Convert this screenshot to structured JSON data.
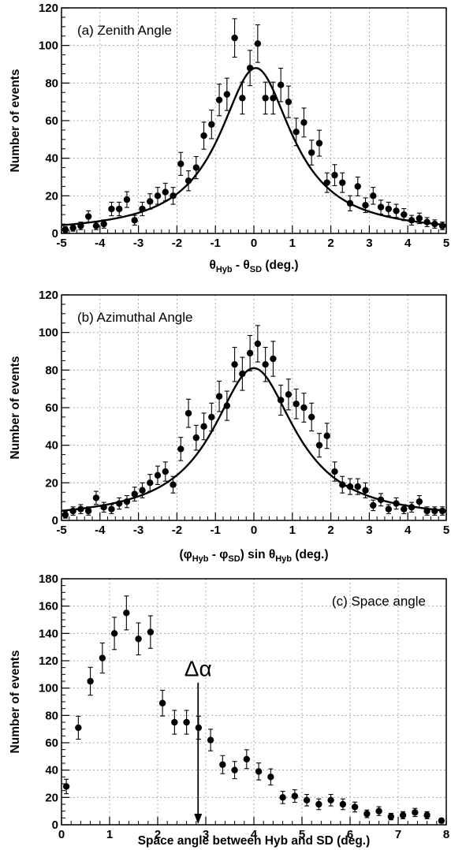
{
  "chart_data": [
    {
      "id": "a",
      "type": "scatter",
      "label": "(a) Zenith Angle",
      "xlabel": {
        "main": "θ",
        "sub1": "Hyb",
        "mid": " - θ",
        "sub2": "SD",
        "tail": " (deg.)"
      },
      "ylabel": "Number of events",
      "xlim": [
        -5,
        5
      ],
      "ylim": [
        0,
        120
      ],
      "xticks": [
        -5,
        -4,
        -3,
        -2,
        -1,
        0,
        1,
        2,
        3,
        4,
        5
      ],
      "yticks": [
        0,
        20,
        40,
        60,
        80,
        100,
        120
      ],
      "grid": true,
      "fit": {
        "amplitude": 88,
        "mean": 0.05,
        "gamma": 1.15
      },
      "points": [
        {
          "x": -4.9,
          "y": 2,
          "err": 1.5
        },
        {
          "x": -4.7,
          "y": 3,
          "err": 1.8
        },
        {
          "x": -4.5,
          "y": 4,
          "err": 2
        },
        {
          "x": -4.3,
          "y": 9,
          "err": 3
        },
        {
          "x": -4.1,
          "y": 4,
          "err": 2
        },
        {
          "x": -3.9,
          "y": 5,
          "err": 2.2
        },
        {
          "x": -3.7,
          "y": 13,
          "err": 3.6
        },
        {
          "x": -3.5,
          "y": 13,
          "err": 3.6
        },
        {
          "x": -3.3,
          "y": 18,
          "err": 4.2
        },
        {
          "x": -3.1,
          "y": 7,
          "err": 2.6
        },
        {
          "x": -2.9,
          "y": 13,
          "err": 3.6
        },
        {
          "x": -2.7,
          "y": 17,
          "err": 4.1
        },
        {
          "x": -2.5,
          "y": 20,
          "err": 4.5
        },
        {
          "x": -2.3,
          "y": 22,
          "err": 4.7
        },
        {
          "x": -2.1,
          "y": 20,
          "err": 4.5
        },
        {
          "x": -1.9,
          "y": 37,
          "err": 6.1
        },
        {
          "x": -1.7,
          "y": 28,
          "err": 5.3
        },
        {
          "x": -1.5,
          "y": 35,
          "err": 5.9
        },
        {
          "x": -1.3,
          "y": 52,
          "err": 7.2
        },
        {
          "x": -1.1,
          "y": 58,
          "err": 7.6
        },
        {
          "x": -0.9,
          "y": 71,
          "err": 8.4
        },
        {
          "x": -0.7,
          "y": 74,
          "err": 8.6
        },
        {
          "x": -0.5,
          "y": 104,
          "err": 10.2
        },
        {
          "x": -0.3,
          "y": 72,
          "err": 8.5
        },
        {
          "x": -0.1,
          "y": 88,
          "err": 9.4
        },
        {
          "x": 0.1,
          "y": 101,
          "err": 10
        },
        {
          "x": 0.3,
          "y": 72,
          "err": 8.5
        },
        {
          "x": 0.5,
          "y": 72,
          "err": 8.5
        },
        {
          "x": 0.7,
          "y": 79,
          "err": 8.9
        },
        {
          "x": 0.9,
          "y": 70,
          "err": 8.4
        },
        {
          "x": 1.1,
          "y": 54,
          "err": 7.3
        },
        {
          "x": 1.3,
          "y": 59,
          "err": 7.7
        },
        {
          "x": 1.5,
          "y": 43,
          "err": 6.6
        },
        {
          "x": 1.7,
          "y": 48,
          "err": 6.9
        },
        {
          "x": 1.9,
          "y": 27,
          "err": 5.2
        },
        {
          "x": 2.1,
          "y": 31,
          "err": 5.6
        },
        {
          "x": 2.3,
          "y": 27,
          "err": 5.2
        },
        {
          "x": 2.5,
          "y": 16,
          "err": 4
        },
        {
          "x": 2.7,
          "y": 25,
          "err": 5
        },
        {
          "x": 2.9,
          "y": 15,
          "err": 3.9
        },
        {
          "x": 3.1,
          "y": 20,
          "err": 4.5
        },
        {
          "x": 3.3,
          "y": 14,
          "err": 3.7
        },
        {
          "x": 3.5,
          "y": 13,
          "err": 3.6
        },
        {
          "x": 3.7,
          "y": 12,
          "err": 3.5
        },
        {
          "x": 3.9,
          "y": 10,
          "err": 3.2
        },
        {
          "x": 4.1,
          "y": 7,
          "err": 2.6
        },
        {
          "x": 4.3,
          "y": 8,
          "err": 2.8
        },
        {
          "x": 4.5,
          "y": 6,
          "err": 2.4
        },
        {
          "x": 4.7,
          "y": 5,
          "err": 2.2
        },
        {
          "x": 4.9,
          "y": 4,
          "err": 2
        }
      ]
    },
    {
      "id": "b",
      "type": "scatter",
      "label": "(b) Azimuthal Angle",
      "xlabel": {
        "pre": "(φ",
        "sub1": "Hyb",
        "mid": " - φ",
        "sub2": "SD",
        "mid2": ") sin θ",
        "sub3": "Hyb",
        "tail": " (deg.)"
      },
      "ylabel": "Number of events",
      "xlim": [
        -5,
        5
      ],
      "ylim": [
        0,
        120
      ],
      "xticks": [
        -5,
        -4,
        -3,
        -2,
        -1,
        0,
        1,
        2,
        3,
        4,
        5
      ],
      "yticks": [
        0,
        20,
        40,
        60,
        80,
        100,
        120
      ],
      "grid": true,
      "fit": {
        "amplitude": 81,
        "mean": 0.0,
        "gamma": 1.3
      },
      "points": [
        {
          "x": -4.9,
          "y": 3,
          "err": 1.8
        },
        {
          "x": -4.7,
          "y": 5,
          "err": 2.2
        },
        {
          "x": -4.5,
          "y": 6,
          "err": 2.4
        },
        {
          "x": -4.3,
          "y": 5,
          "err": 2.2
        },
        {
          "x": -4.1,
          "y": 12,
          "err": 3.5
        },
        {
          "x": -3.9,
          "y": 7,
          "err": 2.6
        },
        {
          "x": -3.7,
          "y": 6,
          "err": 2.4
        },
        {
          "x": -3.5,
          "y": 9,
          "err": 3
        },
        {
          "x": -3.3,
          "y": 10,
          "err": 3.2
        },
        {
          "x": -3.1,
          "y": 14,
          "err": 3.7
        },
        {
          "x": -2.9,
          "y": 16,
          "err": 4
        },
        {
          "x": -2.7,
          "y": 20,
          "err": 4.5
        },
        {
          "x": -2.5,
          "y": 24,
          "err": 4.9
        },
        {
          "x": -2.3,
          "y": 26,
          "err": 5.1
        },
        {
          "x": -2.1,
          "y": 19,
          "err": 4.4
        },
        {
          "x": -1.9,
          "y": 38,
          "err": 6.2
        },
        {
          "x": -1.7,
          "y": 57,
          "err": 7.5
        },
        {
          "x": -1.5,
          "y": 44,
          "err": 6.6
        },
        {
          "x": -1.3,
          "y": 50,
          "err": 7.1
        },
        {
          "x": -1.1,
          "y": 55,
          "err": 7.4
        },
        {
          "x": -0.9,
          "y": 66,
          "err": 8.1
        },
        {
          "x": -0.7,
          "y": 61,
          "err": 7.8
        },
        {
          "x": -0.5,
          "y": 83,
          "err": 9.1
        },
        {
          "x": -0.3,
          "y": 78,
          "err": 8.8
        },
        {
          "x": -0.1,
          "y": 89,
          "err": 9.4
        },
        {
          "x": 0.1,
          "y": 94,
          "err": 9.7
        },
        {
          "x": 0.3,
          "y": 83,
          "err": 9.1
        },
        {
          "x": 0.5,
          "y": 86,
          "err": 9.3
        },
        {
          "x": 0.7,
          "y": 64,
          "err": 8
        },
        {
          "x": 0.9,
          "y": 67,
          "err": 8.2
        },
        {
          "x": 1.1,
          "y": 62,
          "err": 7.9
        },
        {
          "x": 1.3,
          "y": 60,
          "err": 7.7
        },
        {
          "x": 1.5,
          "y": 55,
          "err": 7.4
        },
        {
          "x": 1.7,
          "y": 40,
          "err": 6.3
        },
        {
          "x": 1.9,
          "y": 45,
          "err": 6.7
        },
        {
          "x": 2.1,
          "y": 26,
          "err": 5.1
        },
        {
          "x": 2.3,
          "y": 19,
          "err": 4.4
        },
        {
          "x": 2.5,
          "y": 18,
          "err": 4.2
        },
        {
          "x": 2.7,
          "y": 18,
          "err": 4.2
        },
        {
          "x": 2.9,
          "y": 16,
          "err": 4
        },
        {
          "x": 3.1,
          "y": 8,
          "err": 2.8
        },
        {
          "x": 3.3,
          "y": 11,
          "err": 3.3
        },
        {
          "x": 3.5,
          "y": 6,
          "err": 2.4
        },
        {
          "x": 3.7,
          "y": 9,
          "err": 3
        },
        {
          "x": 3.9,
          "y": 6,
          "err": 2.4
        },
        {
          "x": 4.1,
          "y": 7,
          "err": 2.6
        },
        {
          "x": 4.3,
          "y": 10,
          "err": 3.2
        },
        {
          "x": 4.5,
          "y": 5,
          "err": 2.2
        },
        {
          "x": 4.7,
          "y": 5,
          "err": 2.2
        },
        {
          "x": 4.9,
          "y": 5,
          "err": 2.2
        }
      ]
    },
    {
      "id": "c",
      "type": "scatter",
      "label": "(c) Space angle",
      "xlabel": {
        "tail": "Space angle between Hyb and SD (deg.)"
      },
      "ylabel": "Number of events",
      "xlim": [
        0,
        8
      ],
      "ylim": [
        0,
        180
      ],
      "xticks": [
        0,
        1,
        2,
        3,
        4,
        5,
        6,
        7,
        8
      ],
      "yticks": [
        0,
        20,
        40,
        60,
        80,
        100,
        120,
        140,
        160,
        180
      ],
      "grid": true,
      "annotation": {
        "text": "Δα",
        "x": 2.84,
        "y_top": 104,
        "y_bottom": 0
      },
      "points": [
        {
          "x": 0.1,
          "y": 28,
          "err": 5.3
        },
        {
          "x": 0.35,
          "y": 71,
          "err": 8.4
        },
        {
          "x": 0.6,
          "y": 105,
          "err": 10.2
        },
        {
          "x": 0.85,
          "y": 122,
          "err": 11
        },
        {
          "x": 1.1,
          "y": 140,
          "err": 11.8
        },
        {
          "x": 1.35,
          "y": 155,
          "err": 12.4
        },
        {
          "x": 1.6,
          "y": 136,
          "err": 11.7
        },
        {
          "x": 1.85,
          "y": 141,
          "err": 11.9
        },
        {
          "x": 2.1,
          "y": 89,
          "err": 9.4
        },
        {
          "x": 2.35,
          "y": 75,
          "err": 8.7
        },
        {
          "x": 2.6,
          "y": 75,
          "err": 8.7
        },
        {
          "x": 2.85,
          "y": 71,
          "err": 8.4
        },
        {
          "x": 3.1,
          "y": 62,
          "err": 7.9
        },
        {
          "x": 3.35,
          "y": 44,
          "err": 6.6
        },
        {
          "x": 3.6,
          "y": 40,
          "err": 6.3
        },
        {
          "x": 3.85,
          "y": 48,
          "err": 6.9
        },
        {
          "x": 4.1,
          "y": 39,
          "err": 6.2
        },
        {
          "x": 4.35,
          "y": 35,
          "err": 5.9
        },
        {
          "x": 4.6,
          "y": 20,
          "err": 4.5
        },
        {
          "x": 4.85,
          "y": 21,
          "err": 4.6
        },
        {
          "x": 5.1,
          "y": 18,
          "err": 4.2
        },
        {
          "x": 5.35,
          "y": 15,
          "err": 3.9
        },
        {
          "x": 5.6,
          "y": 18,
          "err": 4.2
        },
        {
          "x": 5.85,
          "y": 15,
          "err": 3.9
        },
        {
          "x": 6.1,
          "y": 13,
          "err": 3.6
        },
        {
          "x": 6.35,
          "y": 8,
          "err": 2.8
        },
        {
          "x": 6.6,
          "y": 10,
          "err": 3.2
        },
        {
          "x": 6.85,
          "y": 6,
          "err": 2.4
        },
        {
          "x": 7.1,
          "y": 7,
          "err": 2.6
        },
        {
          "x": 7.35,
          "y": 9,
          "err": 3
        },
        {
          "x": 7.6,
          "y": 7,
          "err": 2.6
        },
        {
          "x": 7.9,
          "y": 3,
          "err": 1.7
        }
      ]
    }
  ]
}
